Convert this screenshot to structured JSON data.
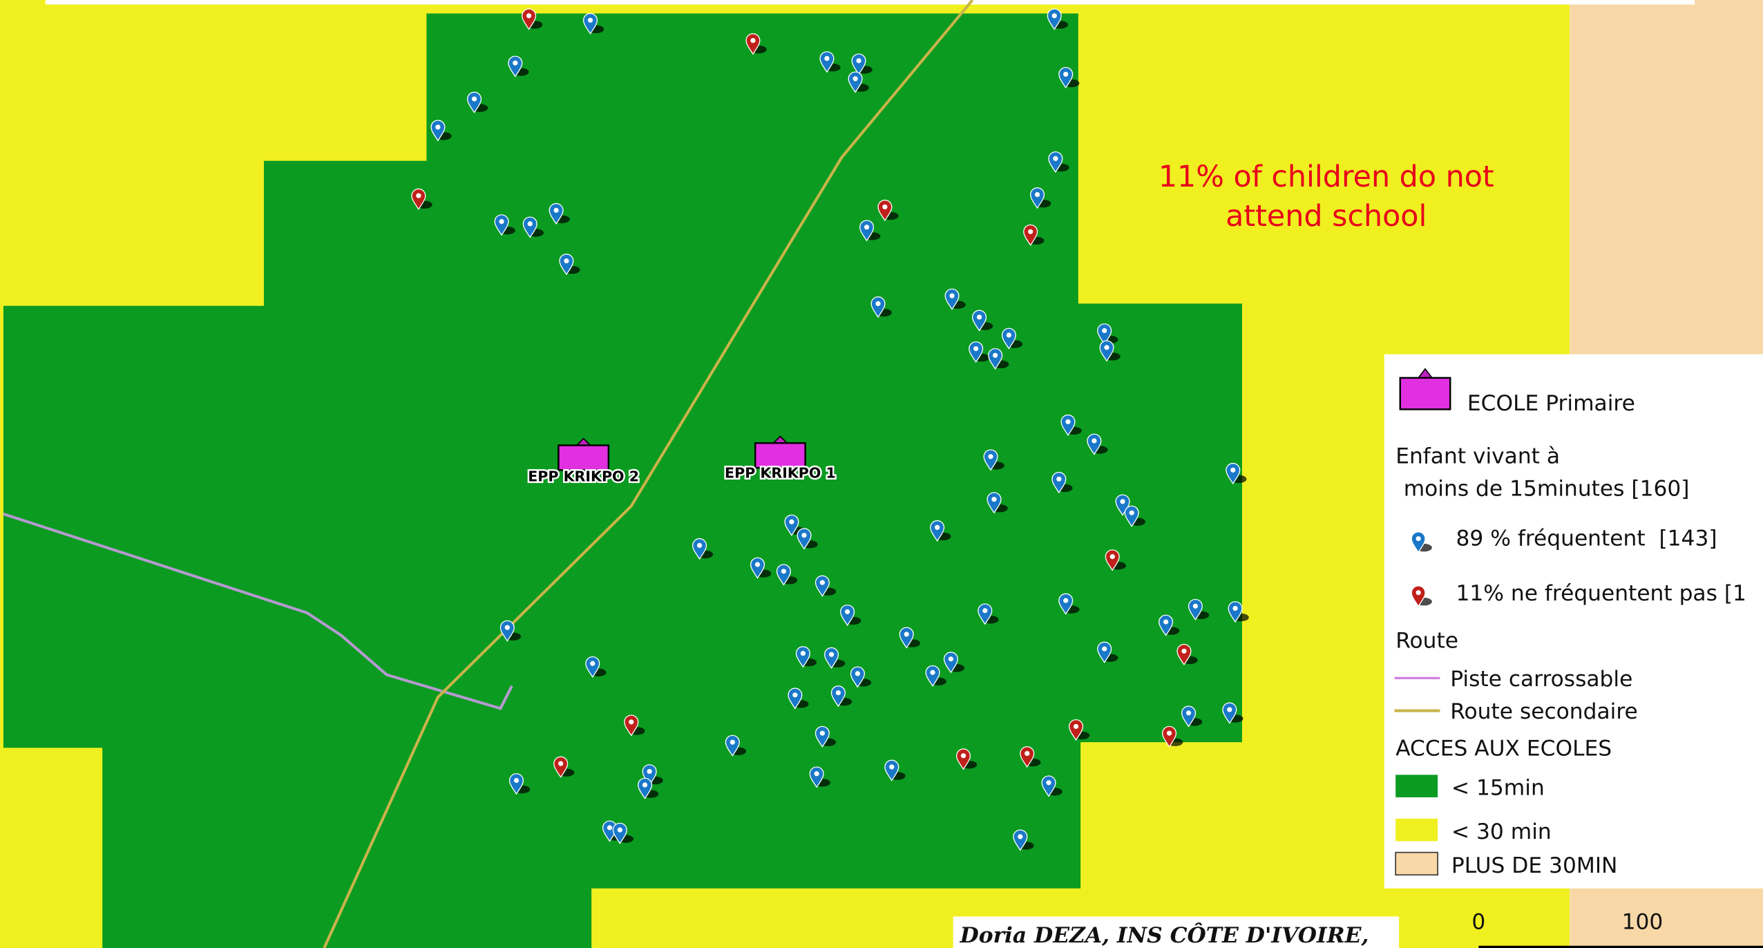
{
  "annotation": {
    "lines": [
      "11% of children do not",
      "attend school"
    ]
  },
  "schools": [
    {
      "label": "EPP KRIKPO 2"
    },
    {
      "label": "EPP KRIKPO 1"
    }
  ],
  "legend": {
    "school": "ECOLE Primaire",
    "children_title": [
      "Enfant vivant à",
      "moins de 15minutes [160]"
    ],
    "attending": "89 % fréquentent  [143]",
    "not_attending": "11% ne fréquentent pas [1",
    "road_title": "Route",
    "roads": [
      "Piste carrossable",
      "Route secondaire"
    ],
    "access_title": "ACCES AUX ECOLES",
    "access": [
      "< 15min",
      "< 30 min",
      "PLUS DE 30MIN"
    ]
  },
  "scale": {
    "labels": [
      "0",
      "100"
    ]
  },
  "credit": "Doria DEZA, INS CÔTE D'IVOIRE,"
}
